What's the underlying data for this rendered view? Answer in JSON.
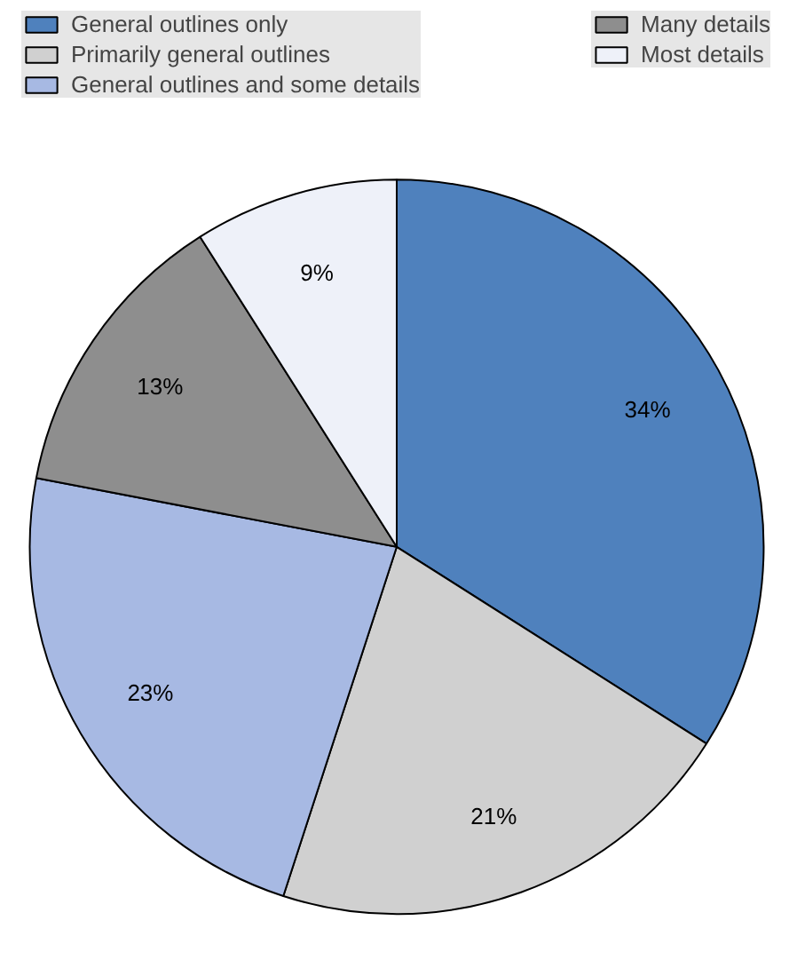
{
  "chart_data": {
    "type": "pie",
    "categories": [
      "General outlines only",
      "Primarily general outlines",
      "General outlines and some details",
      "Many details",
      "Most details"
    ],
    "values": [
      34,
      21,
      23,
      13,
      9
    ],
    "value_labels": [
      "34%",
      "21%",
      "23%",
      "13%",
      "9%"
    ],
    "colors": [
      "#4f81bd",
      "#d0d0d0",
      "#a7b9e3",
      "#8e8e8e",
      "#eef1f9"
    ],
    "legend": "top"
  }
}
